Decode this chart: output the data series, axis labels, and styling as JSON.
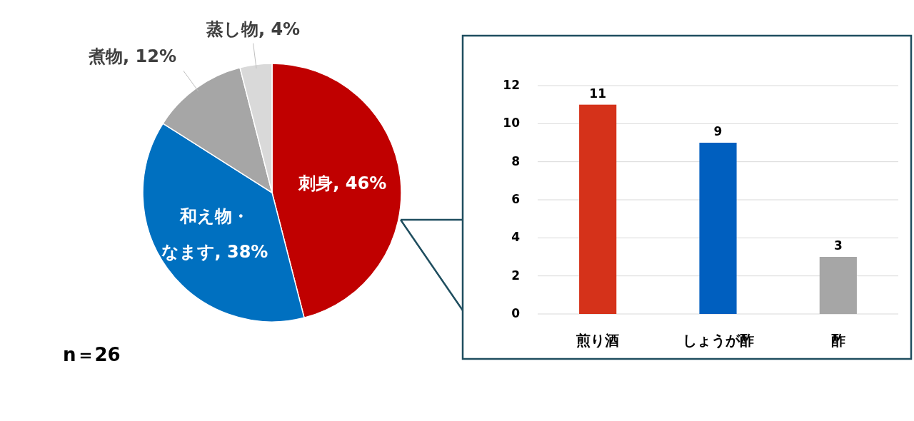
{
  "chart_data": [
    {
      "type": "pie",
      "categories": [
        "刺身",
        "和え物・なます",
        "煮物",
        "蒸し物"
      ],
      "values": [
        46,
        38,
        12,
        4
      ],
      "value_labels": [
        "46%",
        "38%",
        "12%",
        "4%"
      ],
      "colors": [
        "#c00000",
        "#0070c0",
        "#a6a6a6",
        "#d9d9d9"
      ],
      "annotations": [
        "n＝26"
      ]
    },
    {
      "type": "bar",
      "categories": [
        "煎り酒",
        "しょうが酢",
        "酢"
      ],
      "values": [
        11,
        9,
        3
      ],
      "colors": [
        "#d5321a",
        "#005fbf",
        "#a6a6a6"
      ],
      "ylim": [
        0,
        12
      ],
      "yticks": [
        0,
        2,
        4,
        6,
        8,
        10,
        12
      ],
      "grid": "y",
      "data_labels": true
    }
  ]
}
